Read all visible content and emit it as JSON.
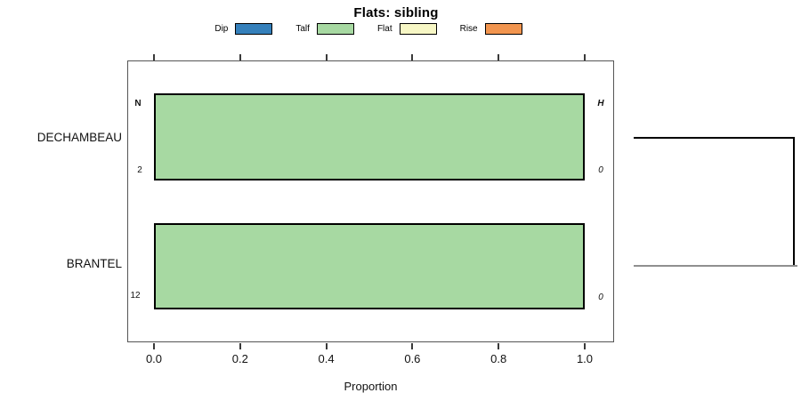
{
  "title": "Flats: sibling",
  "legend": {
    "position": "top",
    "items": [
      {
        "label": "Dip",
        "color": "#3580bb"
      },
      {
        "label": "Talf",
        "color": "#a7d9a2"
      },
      {
        "label": "Flat",
        "color": "#f7f7c5"
      },
      {
        "label": "Rise",
        "color": "#f2954f"
      }
    ]
  },
  "chart_data": {
    "type": "bar",
    "orientation": "horizontal",
    "stacked": true,
    "title": "Flats: sibling",
    "xlabel": "Proportion",
    "xlim": [
      0.0,
      1.0
    ],
    "xticks": [
      "0.0",
      "0.2",
      "0.4",
      "0.6",
      "0.8",
      "1.0"
    ],
    "grid": false,
    "legend_position": "top",
    "categories": [
      "DECHAMBEAU",
      "BRANTEL"
    ],
    "series": [
      {
        "name": "Dip",
        "color": "#3580bb",
        "values": [
          0.0,
          0.0
        ]
      },
      {
        "name": "Talf",
        "color": "#a7d9a2",
        "values": [
          1.0,
          1.0
        ]
      },
      {
        "name": "Flat",
        "color": "#f7f7c5",
        "values": [
          0.0,
          0.0
        ]
      },
      {
        "name": "Rise",
        "color": "#f2954f",
        "values": [
          0.0,
          0.0
        ]
      }
    ],
    "annotations": {
      "left_header": "N",
      "right_header": "H",
      "rows": [
        {
          "category": "DECHAMBEAU",
          "n": "2",
          "h": "0"
        },
        {
          "category": "BRANTEL",
          "n": "12",
          "h": "0"
        }
      ]
    }
  }
}
